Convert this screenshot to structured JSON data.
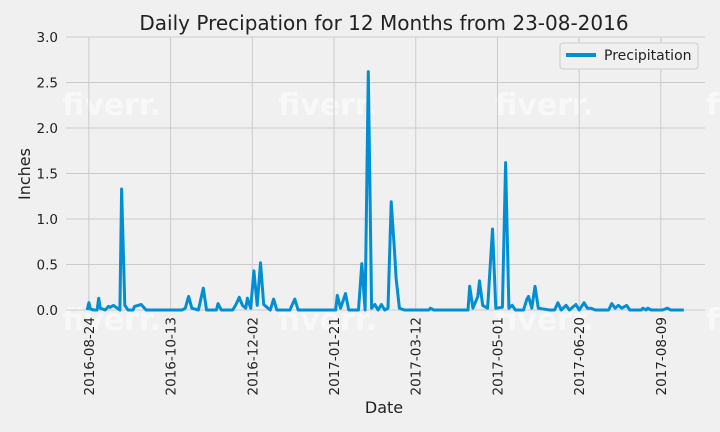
{
  "chart_data": {
    "type": "line",
    "title": "Daily Precipation for 12 Months from 23-08-2016",
    "xlabel": "Date",
    "ylabel": "Inches",
    "ylim": [
      0,
      3.0
    ],
    "yticks": [
      "0.0",
      "0.5",
      "1.0",
      "1.5",
      "2.0",
      "2.5",
      "3.0"
    ],
    "xlim": [
      "2016-08-10",
      "2017-09-05"
    ],
    "xticks": [
      "2016-08-24",
      "2016-10-13",
      "2016-12-02",
      "2017-01-21",
      "2017-03-12",
      "2017-05-01",
      "2017-06-20",
      "2017-08-09"
    ],
    "grid": true,
    "legend_position": "top-right",
    "series": [
      {
        "name": "Precipitation",
        "color": "#008fd5",
        "points": [
          [
            "2016-08-23",
            0.0
          ],
          [
            "2016-08-24",
            0.08
          ],
          [
            "2016-08-25",
            0.01
          ],
          [
            "2016-08-27",
            0.0
          ],
          [
            "2016-08-29",
            0.0
          ],
          [
            "2016-08-30",
            0.13
          ],
          [
            "2016-08-31",
            0.02
          ],
          [
            "2016-09-03",
            0.0
          ],
          [
            "2016-09-05",
            0.04
          ],
          [
            "2016-09-06",
            0.03
          ],
          [
            "2016-09-08",
            0.05
          ],
          [
            "2016-09-12",
            0.0
          ],
          [
            "2016-09-13",
            1.33
          ],
          [
            "2016-09-15",
            0.05
          ],
          [
            "2016-09-17",
            0.0
          ],
          [
            "2016-09-20",
            0.0
          ],
          [
            "2016-09-21",
            0.04
          ],
          [
            "2016-09-25",
            0.06
          ],
          [
            "2016-09-28",
            0.0
          ],
          [
            "2016-10-05",
            0.0
          ],
          [
            "2016-10-20",
            0.0
          ],
          [
            "2016-10-22",
            0.02
          ],
          [
            "2016-10-24",
            0.15
          ],
          [
            "2016-10-26",
            0.02
          ],
          [
            "2016-10-30",
            0.0
          ],
          [
            "2016-11-02",
            0.24
          ],
          [
            "2016-11-04",
            0.0
          ],
          [
            "2016-11-10",
            0.0
          ],
          [
            "2016-11-11",
            0.07
          ],
          [
            "2016-11-13",
            0.0
          ],
          [
            "2016-11-20",
            0.0
          ],
          [
            "2016-11-22",
            0.06
          ],
          [
            "2016-11-24",
            0.14
          ],
          [
            "2016-11-26",
            0.05
          ],
          [
            "2016-11-28",
            0.02
          ],
          [
            "2016-11-29",
            0.13
          ],
          [
            "2016-12-01",
            0.02
          ],
          [
            "2016-12-03",
            0.43
          ],
          [
            "2016-12-05",
            0.05
          ],
          [
            "2016-12-07",
            0.52
          ],
          [
            "2016-12-09",
            0.06
          ],
          [
            "2016-12-11",
            0.03
          ],
          [
            "2016-12-13",
            0.0
          ],
          [
            "2016-12-15",
            0.12
          ],
          [
            "2016-12-17",
            0.0
          ],
          [
            "2016-12-25",
            0.0
          ],
          [
            "2016-12-28",
            0.12
          ],
          [
            "2016-12-30",
            0.0
          ],
          [
            "2017-01-15",
            0.0
          ],
          [
            "2017-01-22",
            0.0
          ],
          [
            "2017-01-23",
            0.16
          ],
          [
            "2017-01-25",
            0.02
          ],
          [
            "2017-01-28",
            0.18
          ],
          [
            "2017-01-30",
            0.0
          ],
          [
            "2017-02-05",
            0.0
          ],
          [
            "2017-02-07",
            0.51
          ],
          [
            "2017-02-09",
            0.0
          ],
          [
            "2017-02-11",
            2.62
          ],
          [
            "2017-02-13",
            0.02
          ],
          [
            "2017-02-15",
            0.06
          ],
          [
            "2017-02-17",
            0.0
          ],
          [
            "2017-02-19",
            0.06
          ],
          [
            "2017-02-21",
            0.0
          ],
          [
            "2017-02-23",
            0.02
          ],
          [
            "2017-02-25",
            1.19
          ],
          [
            "2017-02-27",
            0.65
          ],
          [
            "2017-02-28",
            0.35
          ],
          [
            "2017-03-02",
            0.02
          ],
          [
            "2017-03-05",
            0.0
          ],
          [
            "2017-03-20",
            0.0
          ],
          [
            "2017-03-21",
            0.02
          ],
          [
            "2017-03-23",
            0.0
          ],
          [
            "2017-04-10",
            0.0
          ],
          [
            "2017-04-13",
            0.0
          ],
          [
            "2017-04-14",
            0.26
          ],
          [
            "2017-04-16",
            0.02
          ],
          [
            "2017-04-19",
            0.15
          ],
          [
            "2017-04-20",
            0.32
          ],
          [
            "2017-04-22",
            0.05
          ],
          [
            "2017-04-25",
            0.02
          ],
          [
            "2017-04-28",
            0.89
          ],
          [
            "2017-04-30",
            0.02
          ],
          [
            "2017-05-04",
            0.03
          ],
          [
            "2017-05-06",
            1.62
          ],
          [
            "2017-05-08",
            0.02
          ],
          [
            "2017-05-10",
            0.05
          ],
          [
            "2017-05-12",
            0.0
          ],
          [
            "2017-05-17",
            0.0
          ],
          [
            "2017-05-19",
            0.12
          ],
          [
            "2017-05-20",
            0.15
          ],
          [
            "2017-05-22",
            0.02
          ],
          [
            "2017-05-24",
            0.26
          ],
          [
            "2017-05-26",
            0.02
          ],
          [
            "2017-06-02",
            0.0
          ],
          [
            "2017-06-05",
            0.0
          ],
          [
            "2017-06-07",
            0.08
          ],
          [
            "2017-06-09",
            0.0
          ],
          [
            "2017-06-12",
            0.05
          ],
          [
            "2017-06-14",
            0.0
          ],
          [
            "2017-06-18",
            0.06
          ],
          [
            "2017-06-20",
            0.0
          ],
          [
            "2017-06-23",
            0.08
          ],
          [
            "2017-06-25",
            0.02
          ],
          [
            "2017-06-27",
            0.02
          ],
          [
            "2017-06-30",
            0.0
          ],
          [
            "2017-07-08",
            0.0
          ],
          [
            "2017-07-10",
            0.07
          ],
          [
            "2017-07-12",
            0.02
          ],
          [
            "2017-07-14",
            0.05
          ],
          [
            "2017-07-16",
            0.02
          ],
          [
            "2017-07-19",
            0.05
          ],
          [
            "2017-07-21",
            0.0
          ],
          [
            "2017-07-28",
            0.0
          ],
          [
            "2017-07-29",
            0.02
          ],
          [
            "2017-07-31",
            0.0
          ],
          [
            "2017-08-01",
            0.02
          ],
          [
            "2017-08-03",
            0.0
          ],
          [
            "2017-08-10",
            0.0
          ],
          [
            "2017-08-13",
            0.02
          ],
          [
            "2017-08-15",
            0.0
          ],
          [
            "2017-08-23",
            0.0
          ]
        ]
      }
    ]
  },
  "watermark": "fiverr."
}
